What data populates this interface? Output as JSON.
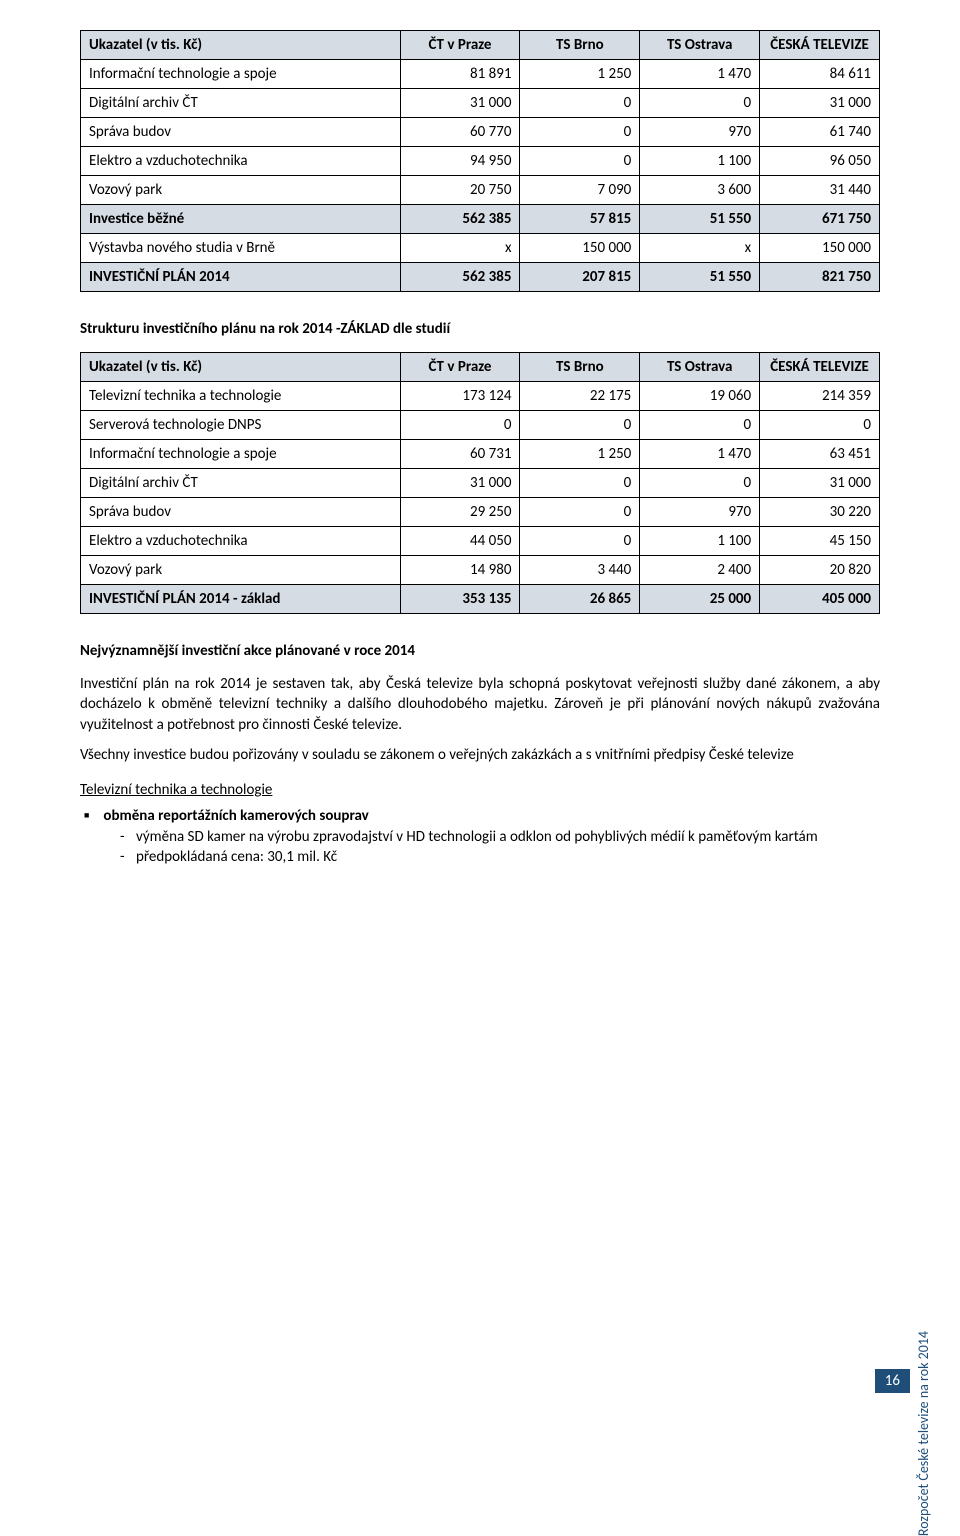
{
  "table1": {
    "headers": [
      "Ukazatel (v tis. Kč)",
      "ČT v Praze",
      "TS Brno",
      "TS Ostrava",
      "ČESKÁ TELEVIZE"
    ],
    "rows": [
      {
        "label": "Informační technologie a spoje",
        "c1": "81 891",
        "c2": "1 250",
        "c3": "1 470",
        "c4": "84 611",
        "hl": false,
        "bold": false
      },
      {
        "label": "Digitální archiv ČT",
        "c1": "31 000",
        "c2": "0",
        "c3": "0",
        "c4": "31 000",
        "hl": false,
        "bold": false
      },
      {
        "label": "Správa budov",
        "c1": "60 770",
        "c2": "0",
        "c3": "970",
        "c4": "61 740",
        "hl": false,
        "bold": false
      },
      {
        "label": "Elektro a vzduchotechnika",
        "c1": "94 950",
        "c2": "0",
        "c3": "1 100",
        "c4": "96 050",
        "hl": false,
        "bold": false
      },
      {
        "label": "Vozový park",
        "c1": "20 750",
        "c2": "7 090",
        "c3": "3 600",
        "c4": "31 440",
        "hl": false,
        "bold": false
      },
      {
        "label": "Investice běžné",
        "c1": "562 385",
        "c2": "57 815",
        "c3": "51 550",
        "c4": "671 750",
        "hl": true,
        "bold": true
      },
      {
        "label": "Výstavba nového studia v Brně",
        "c1": "x",
        "c2": "150 000",
        "c3": "x",
        "c4": "150 000",
        "hl": false,
        "bold": false
      },
      {
        "label": "INVESTIČNÍ PLÁN 2014",
        "c1": "562 385",
        "c2": "207 815",
        "c3": "51 550",
        "c4": "821 750",
        "hl": true,
        "bold": true
      }
    ]
  },
  "section1_title": "Strukturu investičního plánu na rok 2014 -ZÁKLAD dle studií",
  "table2": {
    "headers": [
      "Ukazatel (v tis. Kč)",
      "ČT v Praze",
      "TS Brno",
      "TS Ostrava",
      "ČESKÁ TELEVIZE"
    ],
    "rows": [
      {
        "label": "Televizní technika a technologie",
        "c1": "173 124",
        "c2": "22 175",
        "c3": "19 060",
        "c4": "214 359",
        "hl": false,
        "bold": false
      },
      {
        "label": "Serverová technologie DNPS",
        "c1": "0",
        "c2": "0",
        "c3": "0",
        "c4": "0",
        "hl": false,
        "bold": false
      },
      {
        "label": "Informační technologie a spoje",
        "c1": "60 731",
        "c2": "1 250",
        "c3": "1 470",
        "c4": "63 451",
        "hl": false,
        "bold": false
      },
      {
        "label": "Digitální archiv ČT",
        "c1": "31 000",
        "c2": "0",
        "c3": "0",
        "c4": "31 000",
        "hl": false,
        "bold": false
      },
      {
        "label": "Správa budov",
        "c1": "29 250",
        "c2": "0",
        "c3": "970",
        "c4": "30 220",
        "hl": false,
        "bold": false
      },
      {
        "label": "Elektro a vzduchotechnika",
        "c1": "44 050",
        "c2": "0",
        "c3": "1 100",
        "c4": "45 150",
        "hl": false,
        "bold": false
      },
      {
        "label": "Vozový park",
        "c1": "14 980",
        "c2": "3 440",
        "c3": "2 400",
        "c4": "20 820",
        "hl": false,
        "bold": false
      },
      {
        "label": "INVESTIČNÍ PLÁN 2014 - základ",
        "c1": "353 135",
        "c2": "26 865",
        "c3": "25 000",
        "c4": "405 000",
        "hl": true,
        "bold": true
      }
    ]
  },
  "section2_title": "Nejvýznamnější investiční akce plánované v roce 2014",
  "para1": "Investiční plán na rok 2014 je sestaven tak, aby Česká televize byla schopná poskytovat veřejnosti služby dané zákonem, a aby docházelo k obměně televizní techniky a dalšího dlouhodobého majetku. Zároveň je při plánování nových nákupů zvažována využitelnost a potřebnost pro činnosti České televize.",
  "para2": "Všechny investice budou pořizovány v souladu se zákonem o veřejných zakázkách a s vnitřními předpisy České televize",
  "subsection_title": "Televizní technika a technologie",
  "bullet1": "obměna reportážních kamerových souprav",
  "dash1": "výměna SD kamer na výrobu zpravodajství v HD technologii a odklon od pohyblivých médií k paměťovým kartám",
  "dash2": "předpokládaná cena: 30,1 mil. Kč",
  "side_text": "Rozpočet České televize na rok 2014",
  "page_number": "16",
  "colors": {
    "header_bg": "#d5dce4",
    "border": "#000000",
    "side_text": "#1f4e79",
    "pagenum_bg": "#1f4e79",
    "pagenum_fg": "#ffffff"
  },
  "col_widths": [
    "40%",
    "15%",
    "15%",
    "15%",
    "15%"
  ]
}
